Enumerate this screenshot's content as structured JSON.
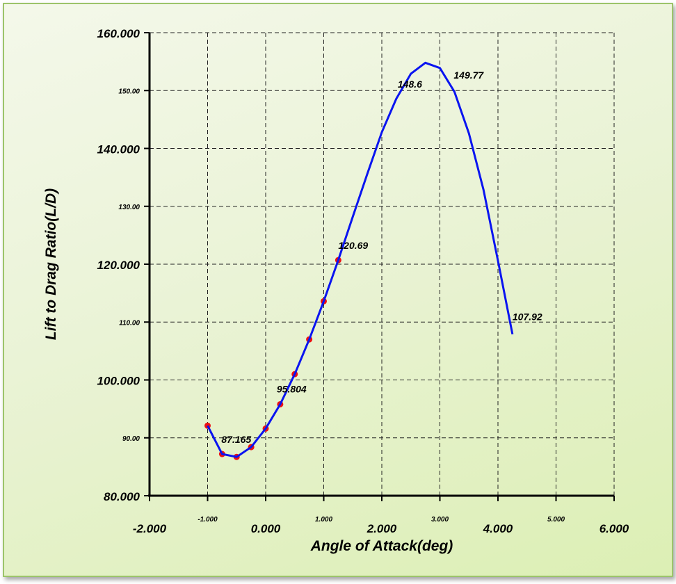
{
  "chart_data": {
    "type": "line",
    "title": "",
    "xlabel": "Angle of Attack(deg)",
    "ylabel": "Lift to Drag Ratio(L/D)",
    "xlim": [
      -2,
      6
    ],
    "ylim": [
      80,
      160
    ],
    "grid": true,
    "x_major_ticks": [
      "-2.000",
      "0.000",
      "2.000",
      "4.000",
      "6.000"
    ],
    "x_minor_ticks": [
      "-1.000",
      "1.000",
      "3.000",
      "5.000"
    ],
    "y_major_ticks": [
      "80.000",
      "100.000",
      "120.000",
      "140.000",
      "160.000"
    ],
    "y_minor_ticks": [
      "90.00",
      "110.00",
      "130.00",
      "150.00"
    ],
    "series": [
      {
        "color": "#0a14f0",
        "x": [
          -1.0,
          -0.75,
          -0.5,
          -0.25,
          0.0,
          0.25,
          0.5,
          0.75,
          1.0,
          1.25,
          1.5,
          1.75,
          2.0,
          2.25,
          2.5,
          2.75,
          3.0,
          3.25,
          3.5,
          3.75,
          4.0,
          4.25
        ],
        "y": [
          92.1,
          87.2,
          86.7,
          88.4,
          91.6,
          95.8,
          101.0,
          107.0,
          113.6,
          120.7,
          128.2,
          135.6,
          142.8,
          148.6,
          152.9,
          154.8,
          153.9,
          149.8,
          142.6,
          132.9,
          120.6,
          107.9
        ]
      }
    ],
    "markers": {
      "color": "#ee1111",
      "x": [
        -1.0,
        -0.75,
        -0.5,
        -0.25,
        0.0,
        0.25,
        0.5,
        0.75,
        1.0,
        1.25
      ],
      "y": [
        92.1,
        87.2,
        86.7,
        88.4,
        91.6,
        95.8,
        101.0,
        107.0,
        113.6,
        120.7
      ]
    },
    "annotations": [
      {
        "text": "87.165",
        "x": -0.75,
        "y": 87.2
      },
      {
        "text": "95.804",
        "x": 0.25,
        "y": 95.8
      },
      {
        "text": "120.69",
        "x": 1.25,
        "y": 120.7
      },
      {
        "text": "148.6",
        "x": 2.25,
        "y": 148.6
      },
      {
        "text": "149.77",
        "x": 3.25,
        "y": 149.8
      },
      {
        "text": "107.92",
        "x": 4.25,
        "y": 107.9
      }
    ]
  }
}
